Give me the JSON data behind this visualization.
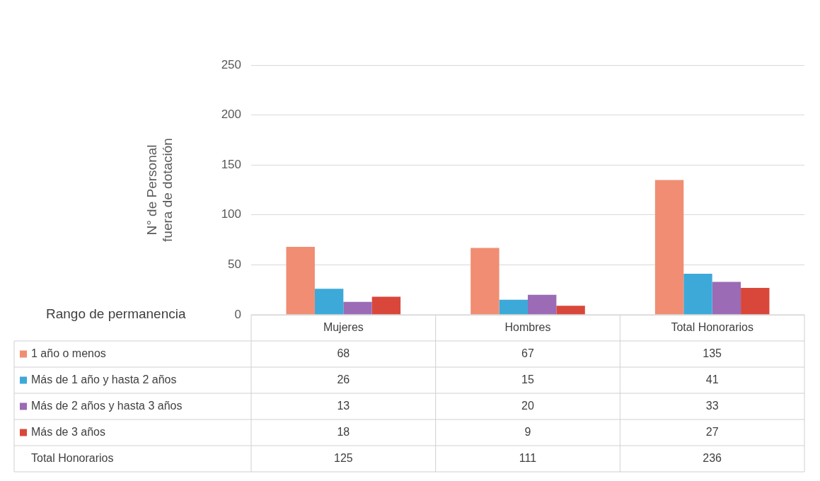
{
  "chart_data": {
    "type": "bar",
    "ylabel": "N° de Personal\nfuera de dotación",
    "legend_title": "Rango de permanencia",
    "categories": [
      "Mujeres",
      "Hombres",
      "Total Honorarios"
    ],
    "series": [
      {
        "name": "1 año o menos",
        "color": "#f08d73",
        "values": [
          68,
          67,
          135
        ]
      },
      {
        "name": "Más de 1 año y hasta 2 años",
        "color": "#3ca9d8",
        "values": [
          26,
          15,
          41
        ]
      },
      {
        "name": "Más de 2 años y hasta 3 años",
        "color": "#9b6bb5",
        "values": [
          13,
          20,
          33
        ]
      },
      {
        "name": "Más de 3 años",
        "color": "#d9473a",
        "values": [
          18,
          9,
          27
        ]
      }
    ],
    "annotations": [
      "Total Honorarios",
      "125",
      "111",
      "236"
    ],
    "ylim": [
      0,
      250
    ],
    "yticks": [
      0,
      50,
      100,
      150,
      200,
      250
    ],
    "grid": "y",
    "legend": "bottom",
    "data_labels": true
  }
}
